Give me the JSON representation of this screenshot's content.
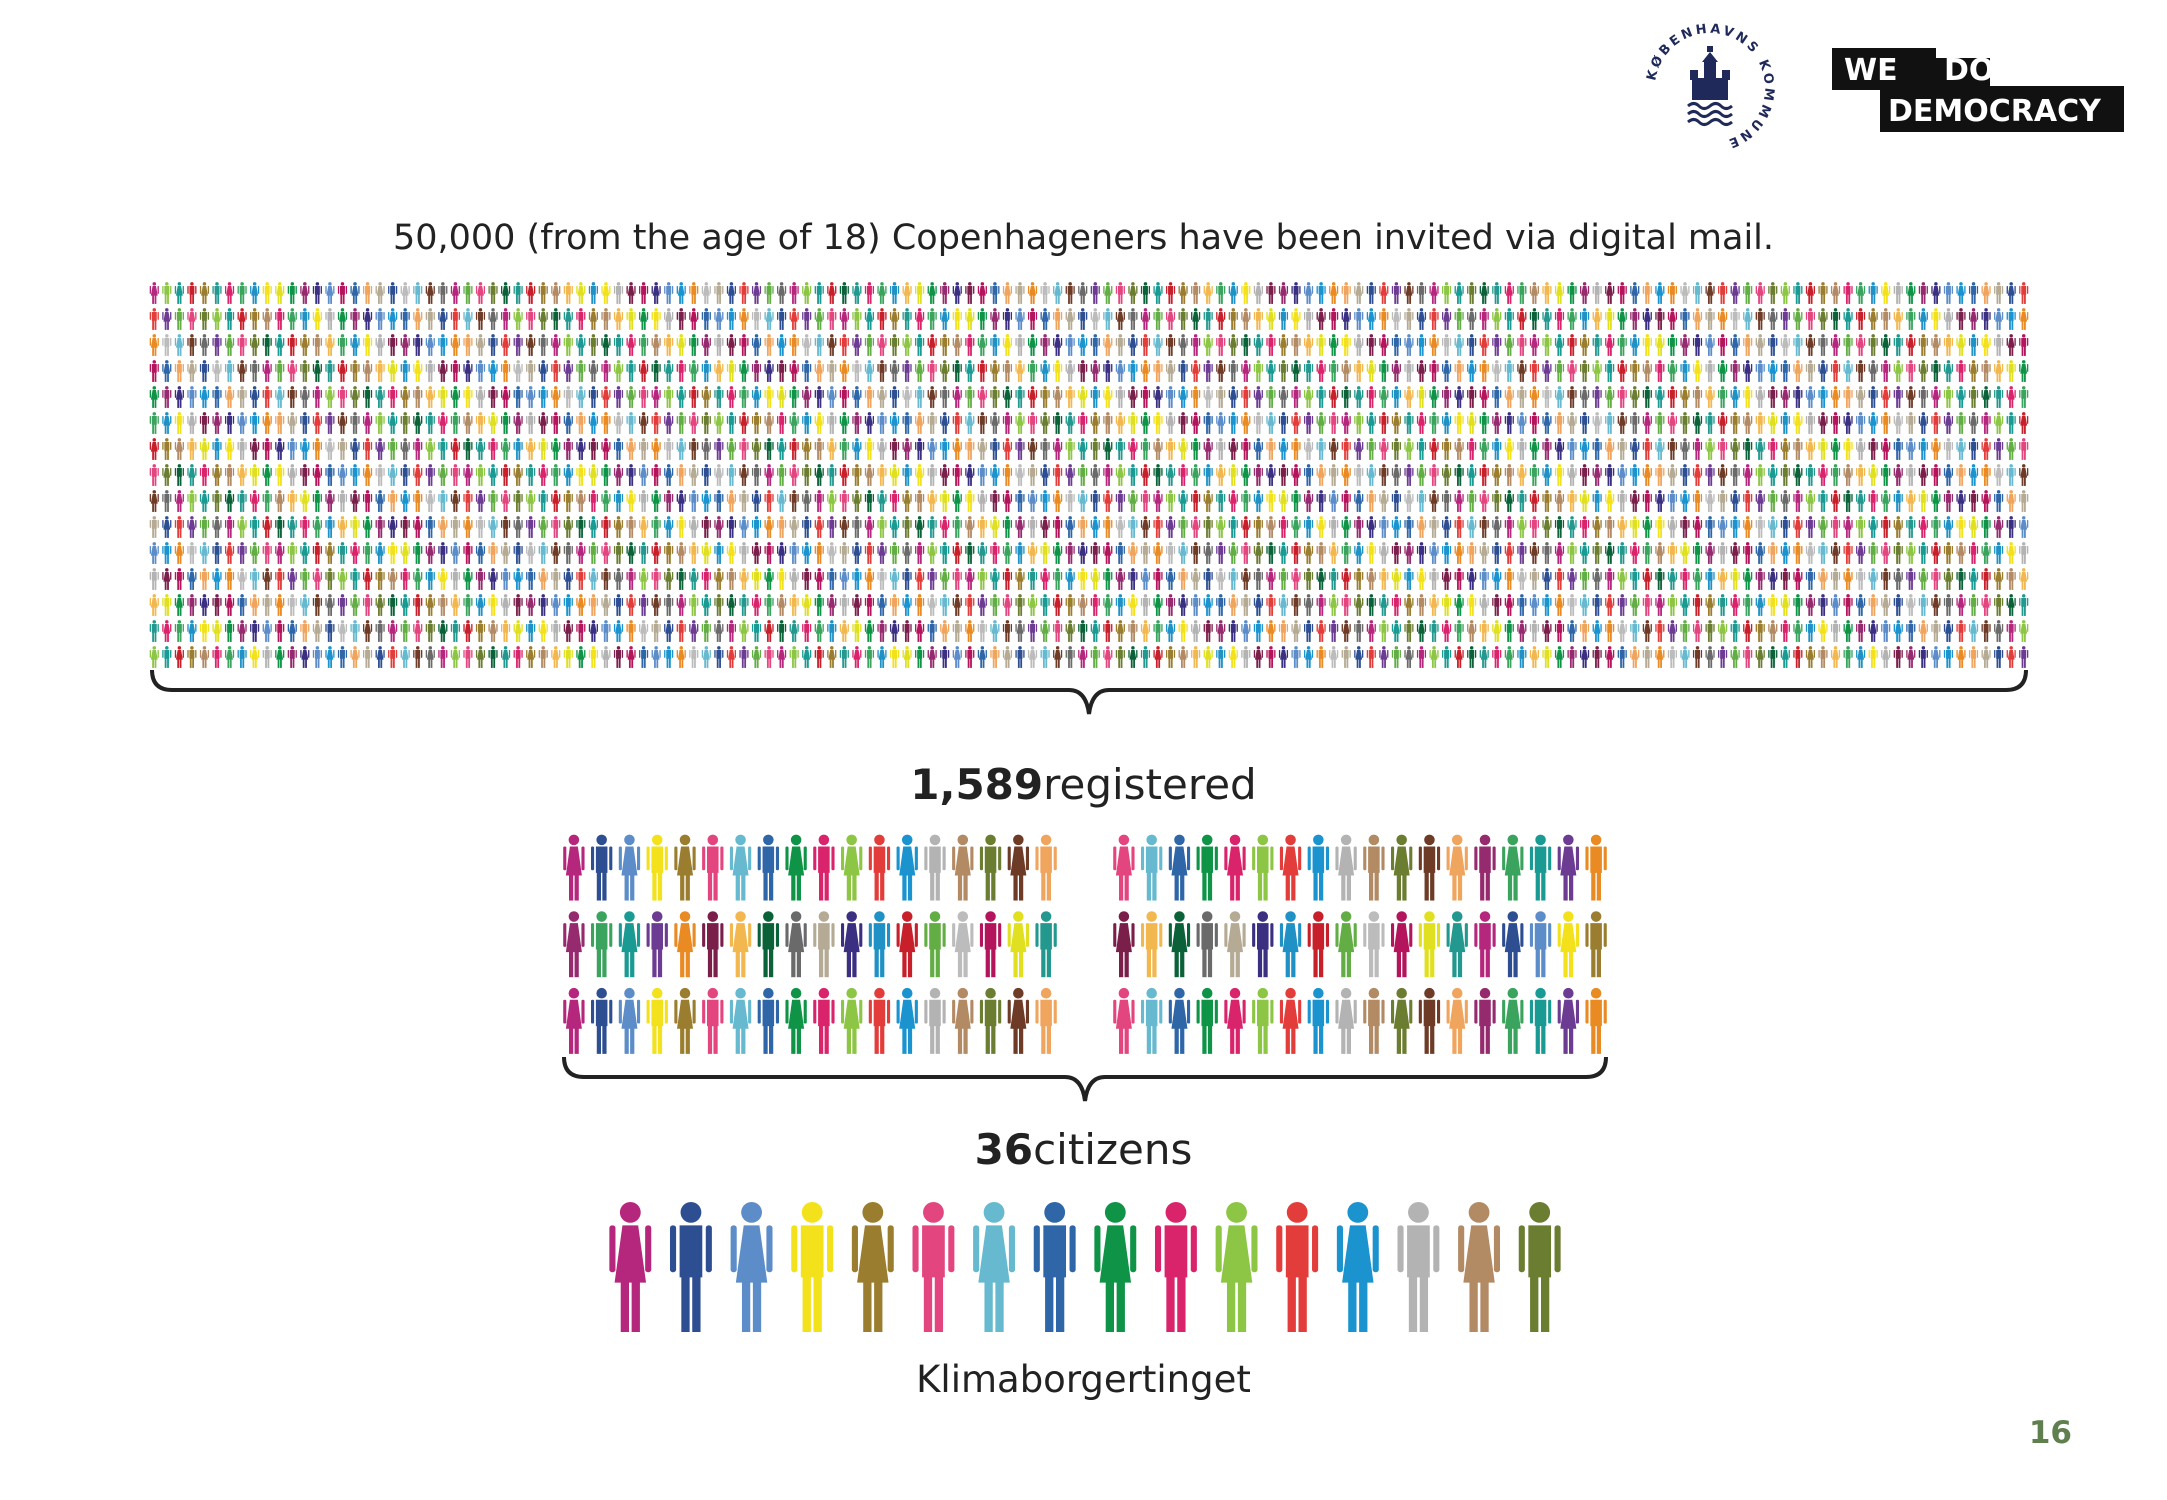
{
  "logos": {
    "kommune_text": "KØBENHAVNS KOMMUNE",
    "wdd_line1": "WE",
    "wdd_line1b": "DO",
    "wdd_line2": "DEMOCRACY"
  },
  "invited": {
    "caption": "50,000 (from the age of 18) Copenhageners have been invited via digital mail."
  },
  "registered": {
    "number": "1,589",
    "label": "registered"
  },
  "citizens": {
    "number": "36",
    "label": "citizens"
  },
  "assembly": {
    "name": "Klimaborgertinget"
  },
  "page_number": "16",
  "palette": [
    "#b5267d",
    "#2d4f92",
    "#5c8dc8",
    "#f2e11b",
    "#9a7d2e",
    "#e3457f",
    "#66b9cf",
    "#2e66a8",
    "#0f9447",
    "#d9246c",
    "#8dc544",
    "#e23d3a",
    "#1a93cf",
    "#b3b3b3",
    "#b28a64",
    "#6b7d31",
    "#6e3b27",
    "#f0a55f",
    "#962a6e",
    "#3aa35d",
    "#199a93",
    "#6c3b92",
    "#e98a23",
    "#7a1e4a",
    "#f2b84f",
    "#0b6138",
    "#6a6a6a",
    "#b5ab94",
    "#3a2f80",
    "#1f91c5",
    "#c8202b",
    "#63ad45",
    "#bcbcbc",
    "#b4145b",
    "#e0e020",
    "#22988e"
  ]
}
